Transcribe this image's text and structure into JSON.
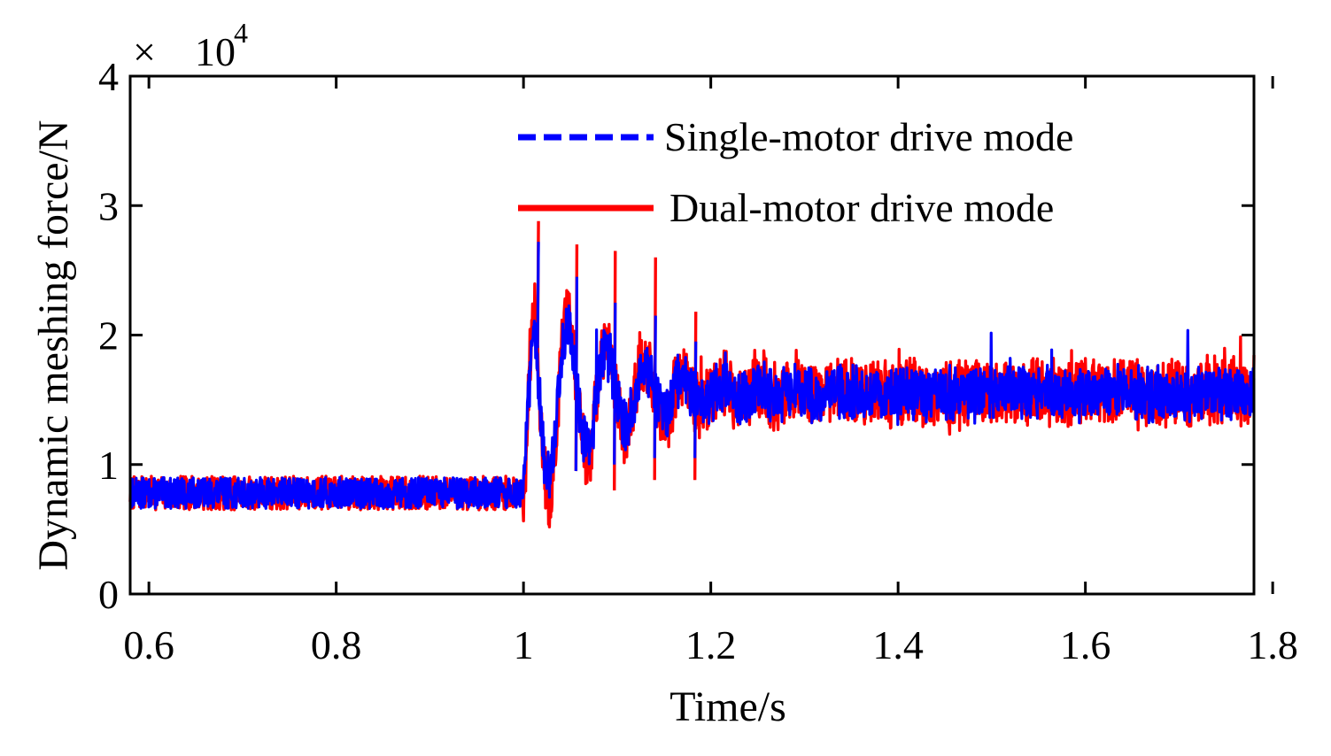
{
  "chart_data": {
    "type": "line",
    "title": "",
    "xlabel": "Time/s",
    "ylabel": "Dynamic meshing force/N",
    "xlim": [
      0.58,
      1.78
    ],
    "ylim": [
      0,
      4
    ],
    "y_scale_multiplier": {
      "symbol": "×",
      "base": "10",
      "exponent": "4"
    },
    "x_ticks": [
      0.6,
      0.8,
      1.0,
      1.2,
      1.4,
      1.6,
      1.8
    ],
    "x_tick_labels": [
      "0.6",
      "0.8",
      "1",
      "1.2",
      "1.4",
      "1.6",
      "1.8"
    ],
    "y_ticks": [
      0,
      1,
      2,
      3,
      4
    ],
    "y_tick_labels": [
      "0",
      "1",
      "2",
      "3",
      "4"
    ],
    "grid": false,
    "legend_position": "top-right",
    "series": [
      {
        "name": "Dual-motor drive mode",
        "color": "#ff0000",
        "style": "solid",
        "seed": 7,
        "baseline_before": 0.78,
        "baseline_after": 1.55,
        "step_time": 1.0,
        "noise_before": 0.13,
        "noise_after": 0.24,
        "osc_amplitude": 1.05,
        "osc_period": 0.041,
        "osc_decay": 0.09,
        "peak_envelope": [
          {
            "t": 1.015,
            "max": 2.88,
            "min": 1.8
          },
          {
            "t": 1.056,
            "max": 2.7,
            "min": 0.95
          },
          {
            "t": 1.097,
            "max": 2.65,
            "min": 0.8
          },
          {
            "t": 1.14,
            "max": 2.6,
            "min": 0.88
          },
          {
            "t": 1.183,
            "max": 2.18,
            "min": 0.88
          }
        ]
      },
      {
        "name": "Single-motor drive mode",
        "color": "#0000ff",
        "style": "dashed",
        "seed": 13,
        "baseline_before": 0.78,
        "baseline_after": 1.55,
        "step_time": 1.0,
        "noise_before": 0.12,
        "noise_after": 0.19,
        "osc_amplitude": 0.95,
        "osc_period": 0.041,
        "osc_decay": 0.08,
        "peak_envelope": [
          {
            "t": 1.015,
            "max": 2.72,
            "min": 1.9
          },
          {
            "t": 1.056,
            "max": 2.45,
            "min": 0.95
          },
          {
            "t": 1.097,
            "max": 2.25,
            "min": 1.0
          },
          {
            "t": 1.14,
            "max": 2.15,
            "min": 1.05
          },
          {
            "t": 1.183,
            "max": 1.95,
            "min": 1.05
          }
        ]
      }
    ]
  }
}
